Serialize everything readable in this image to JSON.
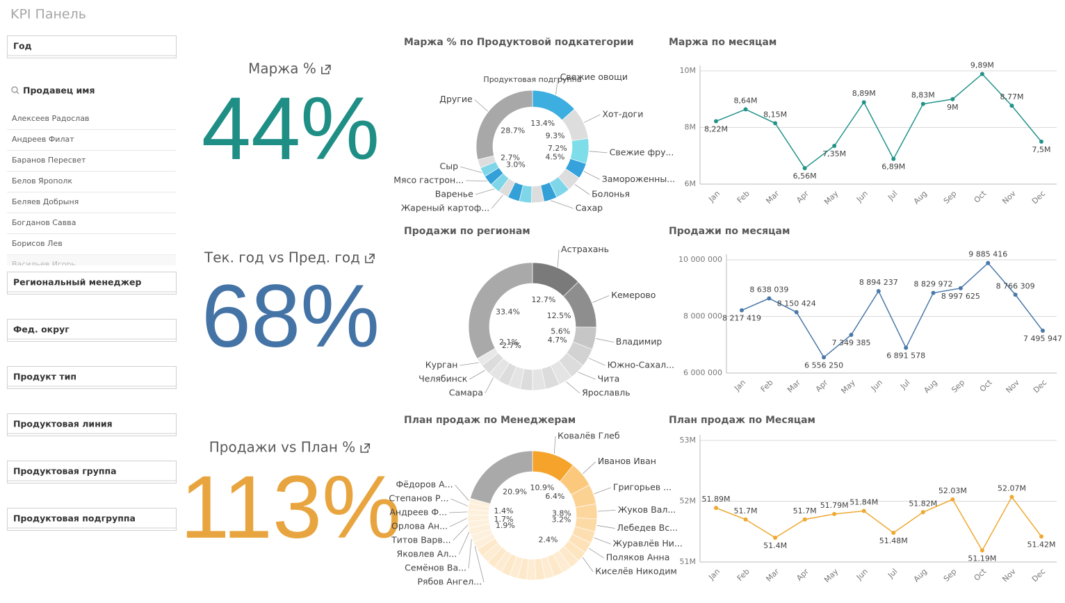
{
  "header": {
    "title": "KPI Панель"
  },
  "filters": {
    "year": "Год",
    "seller": {
      "label": "Продавец имя",
      "items": [
        "Алексеев Радослав",
        "Андреев Филат",
        "Баранов Пересвет",
        "Белов Ярополк",
        "Беляев Добрыня",
        "Богданов Савва",
        "Борисов Лев",
        "Васильев Игорь"
      ]
    },
    "others": [
      "Региональный менеджер",
      "Фед. округ",
      "Продукт тип",
      "Продуктовая линия",
      "Продуктовая группа",
      "Продуктовая подгруппа"
    ]
  },
  "kpis": [
    {
      "title": "Маржа %",
      "value": "44%",
      "color": "#1f8f86"
    },
    {
      "title": "Тек. год vs Пред. год",
      "value": "68%",
      "color": "#4473a6"
    },
    {
      "title": "Продажи vs План %",
      "value": "113%",
      "color": "#e8a53f"
    }
  ],
  "chart_data": [
    {
      "type": "pie",
      "donut": true,
      "title": "Маржа % по Продуктовой подкатегории",
      "subtitle": "Продуктовая подгруппа",
      "categories": [
        "Свежие овощи",
        "Хот-доги",
        "Свежие фру...",
        "Замороженны...",
        "Болонья",
        null,
        "Сахар",
        null,
        null,
        null,
        "Жареный картоф...",
        "Варенье",
        "Мясо гастрон...",
        "Сыр",
        null,
        "Другие"
      ],
      "values": [
        13.4,
        9.3,
        7.2,
        4.5,
        4.4,
        4.1,
        3.8,
        3.6,
        3.5,
        3.4,
        3.0,
        3.0,
        2.9,
        2.7,
        2.5,
        28.7
      ],
      "value_labels": [
        "13.4%",
        "9.3%",
        "7.2%",
        "4.5%",
        null,
        null,
        null,
        null,
        null,
        null,
        null,
        "3.0%",
        null,
        "2.7%",
        null,
        "28.7%"
      ],
      "colors": [
        "#3caee0",
        "#dddddd",
        "#7ddde9",
        "#36a2dc",
        "#dddddd",
        "#7fd6e8",
        "#33a0d8",
        "#dddddd",
        "#7fd6e8",
        "#33a0d8",
        "#dddddd",
        "#7fd6e8",
        "#33a0d8",
        "#7fd6e8",
        "#dddddd",
        "#a8a8a8"
      ]
    },
    {
      "type": "line",
      "title": "Маржа по месяцам",
      "color": "#23938a",
      "grid": true,
      "categories": [
        "Jan",
        "Feb",
        "Mar",
        "Apr",
        "May",
        "Jun",
        "Jul",
        "Aug",
        "Sep",
        "Oct",
        "Nov",
        "Dec"
      ],
      "values": [
        8.22,
        8.64,
        8.15,
        6.56,
        7.35,
        8.89,
        6.89,
        8.83,
        9,
        9.89,
        8.77,
        7.5
      ],
      "value_labels": [
        "8,22M",
        "8,64M",
        "8,15M",
        "6,56M",
        "7,35M",
        "8,89M",
        "6,89M",
        "8,83M",
        "9M",
        "9,89M",
        "8,77M",
        "7,5M"
      ],
      "ylim": [
        6,
        10
      ],
      "yticks": [
        {
          "value": 6,
          "label": "6M"
        },
        {
          "value": 8,
          "label": "8M"
        },
        {
          "value": 10,
          "label": "10M"
        }
      ]
    },
    {
      "type": "pie",
      "donut": true,
      "title": "Продажи по регионам",
      "categories": [
        "Астрахань",
        "Кемерово",
        "Владимир",
        "Южно-Сахал...",
        "Чита",
        "Ярославль",
        null,
        null,
        null,
        null,
        null,
        "Самара",
        "Челябинск",
        "Курган",
        null
      ],
      "values": [
        12.7,
        12.5,
        5.6,
        4.7,
        4.0,
        3.6,
        3.6,
        3.3,
        3.1,
        3.0,
        2.9,
        2.8,
        2.7,
        2.1,
        33.4
      ],
      "value_labels": [
        "12.7%",
        "12.5%",
        "5.6%",
        "4.7%",
        null,
        null,
        null,
        null,
        null,
        null,
        null,
        null,
        "2.7%",
        "2.1%",
        "33.4%"
      ],
      "colors": [
        "#7a7a7a",
        "#8e8e8e",
        "#c6c6c6",
        "#d2d2d2",
        "#dcdcdc",
        "#e4e4e4",
        "#dcdcdc",
        "#e4e4e4",
        "#dcdcdc",
        "#e4e4e4",
        "#dcdcdc",
        "#e4e4e4",
        "#dcdcdc",
        "#e8e8e8",
        "#a9a9a9"
      ]
    },
    {
      "type": "line",
      "title": "Продажи по месяцам",
      "color": "#4a78a8",
      "grid": true,
      "categories": [
        "Jan",
        "Feb",
        "Mar",
        "Apr",
        "May",
        "Jun",
        "Jul",
        "Aug",
        "Sep",
        "Oct",
        "Nov",
        "Dec"
      ],
      "values": [
        8217419,
        8638039,
        8150424,
        6556250,
        7349385,
        8894237,
        6891578,
        8829972,
        8997625,
        9885416,
        8766309,
        7495947
      ],
      "value_labels": [
        "8 217 419",
        "8 638 039",
        "8 150 424",
        "6 556 250",
        "7 349 385",
        "8 894 237",
        "6 891 578",
        "8 829 972",
        "8 997 625",
        "9 885 416",
        "8 766 309",
        "7 495 947"
      ],
      "ylim": [
        6000000,
        10000000
      ],
      "yticks": [
        {
          "value": 6000000,
          "label": "6 000 000"
        },
        {
          "value": 8000000,
          "label": "8 000 000"
        },
        {
          "value": 10000000,
          "label": "10 000 000"
        }
      ]
    },
    {
      "type": "pie",
      "donut": true,
      "title": "План продаж по Менеджерам",
      "categories": [
        "Ковалёв Глеб",
        "Иванов Иван",
        "Григорьев ...",
        "Жуков Вал...",
        "Лебедев Вс...",
        "Журавлёв Ни...",
        "Поляков Анна",
        "Киселёв Никодим",
        null,
        null,
        null,
        null,
        null,
        null,
        null,
        null,
        null,
        null,
        null,
        null,
        null,
        "Рябов Ангел...",
        "Семёнов Ва...",
        "Яковлев Ал...",
        "Титов Варв...",
        "Орлова Ан...",
        "Андреев Ф...",
        "Степанов Р...",
        "Фёдоров А...",
        null
      ],
      "values": [
        10.9,
        6.4,
        5.0,
        3.8,
        3.2,
        3.0,
        2.8,
        2.6,
        2.5,
        2.4,
        2.4,
        2.3,
        2.3,
        2.3,
        2.2,
        2.2,
        2.2,
        2.1,
        2.1,
        2.1,
        2.0,
        2.0,
        1.9,
        1.8,
        1.7,
        1.6,
        1.5,
        1.4,
        1.3,
        20.9
      ],
      "value_labels": [
        "10.9%",
        "6.4%",
        null,
        "3.8%",
        "3.2%",
        null,
        null,
        null,
        null,
        "2.4%",
        null,
        null,
        null,
        null,
        null,
        null,
        null,
        null,
        null,
        null,
        null,
        null,
        "1.9%",
        null,
        "1.7%",
        null,
        null,
        "1.4%",
        null,
        "20.9%"
      ],
      "colors": [
        "#f5a32a",
        "#fbc87c",
        "#fcd293",
        "#fcd69c",
        "#fcdaa6",
        "#fddeb0",
        "#fde2b9",
        "#fde5c0",
        "#fde9c9",
        "#fdecd1",
        "#fde9c9",
        "#fdecd1",
        "#fde9c9",
        "#fdecd1",
        "#fde9c9",
        "#fdecd1",
        "#fde9c9",
        "#fdecd1",
        "#fde9c9",
        "#fdecd1",
        "#fde9c9",
        "#fdefd9",
        "#fdf1dd",
        "#fdefd9",
        "#fdf1dd",
        "#fdefd9",
        "#fdf1dd",
        "#fdefd9",
        "#fdf1dd",
        "#a9a9a9"
      ]
    },
    {
      "type": "line",
      "title": "План продаж по Месяцам",
      "color": "#efa830",
      "grid": true,
      "categories": [
        "Jan",
        "Feb",
        "Mar",
        "Apr",
        "May",
        "Jun",
        "Jul",
        "Aug",
        "Sep",
        "Oct",
        "Nov",
        "Dec"
      ],
      "values": [
        51.89,
        51.7,
        51.4,
        51.7,
        51.79,
        51.84,
        51.48,
        51.82,
        52.03,
        51.19,
        52.07,
        51.42
      ],
      "value_labels": [
        "51.89M",
        "51.7M",
        "51.4M",
        "51.7M",
        "51.79M",
        "51.84M",
        "51.48M",
        "51.82M",
        "52.03M",
        "51.19M",
        "52.07M",
        "51.42M"
      ],
      "ylim": [
        51,
        53
      ],
      "yticks": [
        {
          "value": 51,
          "label": "51M"
        },
        {
          "value": 52,
          "label": "52M"
        },
        {
          "value": 53,
          "label": "53M"
        }
      ]
    }
  ]
}
